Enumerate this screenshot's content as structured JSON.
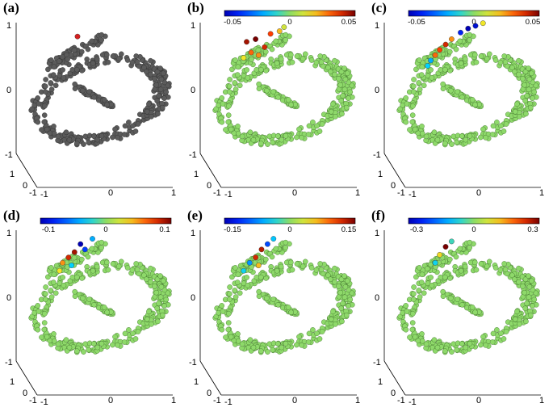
{
  "chart_data": [
    {
      "panel": "(a)",
      "type": "scatter",
      "label": "(a)",
      "colorbar": null,
      "highlight": [
        [
          0.4,
          0.08,
          1.0
        ]
      ],
      "axes": {
        "y_ticks": [
          "1",
          "0",
          "-1"
        ],
        "z_ticks": [
          "1",
          "0",
          "-1"
        ],
        "x_ticks": [
          "-1",
          "0",
          "1"
        ]
      }
    },
    {
      "panel": "(b)",
      "type": "scatter",
      "label": "(b)",
      "colorbar": {
        "min": -0.05,
        "max": 0.05,
        "tick_labels": [
          "-0.05",
          "0",
          "0.05"
        ]
      },
      "highlight": [
        [
          0.3,
          0.12,
          0.045
        ],
        [
          0.36,
          0.1,
          0.05
        ],
        [
          0.42,
          0.16,
          0.04
        ],
        [
          0.33,
          0.2,
          0.03
        ],
        [
          0.46,
          0.06,
          0.035
        ],
        [
          0.38,
          0.22,
          0.025
        ],
        [
          0.52,
          0.04,
          0.02
        ],
        [
          0.28,
          0.24,
          0.015
        ],
        [
          0.55,
          0.01,
          0.01
        ]
      ],
      "axes": {
        "y_ticks": [
          "1",
          "0",
          "-1"
        ],
        "z_ticks": [
          "1",
          "0",
          "-1"
        ],
        "x_ticks": [
          "-1",
          "0",
          "1"
        ]
      }
    },
    {
      "panel": "(c)",
      "type": "scatter",
      "label": "(c)",
      "colorbar": {
        "min": -0.05,
        "max": 0.05,
        "tick_labels": [
          "-0.05",
          "0",
          "0.05"
        ]
      },
      "highlight": [
        [
          0.55,
          0.02,
          -0.05
        ],
        [
          0.6,
          0.0,
          -0.045
        ],
        [
          0.5,
          0.05,
          -0.04
        ],
        [
          0.4,
          0.14,
          0.04
        ],
        [
          0.36,
          0.18,
          0.035
        ],
        [
          0.33,
          0.22,
          0.03
        ],
        [
          0.44,
          0.1,
          0.025
        ],
        [
          0.3,
          0.26,
          -0.02
        ],
        [
          0.28,
          0.3,
          -0.015
        ],
        [
          0.65,
          -0.02,
          0.015
        ]
      ],
      "axes": {
        "y_ticks": [
          "1",
          "0",
          "-1"
        ],
        "z_ticks": [
          "1",
          "0",
          "-1"
        ],
        "x_ticks": [
          "-1",
          "0",
          "1"
        ]
      }
    },
    {
      "panel": "(d)",
      "type": "scatter",
      "label": "(d)",
      "colorbar": {
        "min": -0.1,
        "max": 0.1,
        "tick_labels": [
          "-0.1",
          "0",
          "0.1"
        ]
      },
      "highlight": [
        [
          0.42,
          0.08,
          -0.1
        ],
        [
          0.38,
          0.14,
          0.09
        ],
        [
          0.34,
          0.18,
          0.08
        ],
        [
          0.45,
          0.12,
          -0.07
        ],
        [
          0.3,
          0.22,
          0.05
        ],
        [
          0.5,
          0.04,
          -0.04
        ],
        [
          0.36,
          0.24,
          -0.03
        ],
        [
          0.28,
          0.28,
          0.03
        ]
      ],
      "axes": {
        "y_ticks": [
          "1",
          "0",
          "-1"
        ],
        "z_ticks": [
          "1",
          "0",
          "-1"
        ],
        "x_ticks": [
          "-1",
          "0",
          "1"
        ]
      }
    },
    {
      "panel": "(e)",
      "type": "scatter",
      "label": "(e)",
      "colorbar": {
        "min": -0.15,
        "max": 0.15,
        "tick_labels": [
          "-0.15",
          "0",
          "0.15"
        ]
      },
      "highlight": [
        [
          0.4,
          0.12,
          0.13
        ],
        [
          0.36,
          0.18,
          0.12
        ],
        [
          0.44,
          0.08,
          -0.1
        ],
        [
          0.32,
          0.22,
          -0.07
        ],
        [
          0.48,
          0.04,
          -0.05
        ],
        [
          0.38,
          0.24,
          0.06
        ],
        [
          0.28,
          0.28,
          -0.04
        ]
      ],
      "axes": {
        "y_ticks": [
          "1",
          "0",
          "-1"
        ],
        "z_ticks": [
          "1",
          "0",
          "-1"
        ],
        "x_ticks": [
          "-1",
          "0",
          "1"
        ]
      }
    },
    {
      "panel": "(f)",
      "type": "scatter",
      "label": "(f)",
      "colorbar": {
        "min": -0.3,
        "max": 0.3,
        "tick_labels": [
          "-0.3",
          "0",
          "0.3"
        ]
      },
      "highlight": [
        [
          0.4,
          0.1,
          0.3
        ],
        [
          0.36,
          0.16,
          0.1
        ],
        [
          0.33,
          0.22,
          -0.08
        ],
        [
          0.44,
          0.06,
          -0.05
        ]
      ],
      "axes": {
        "y_ticks": [
          "1",
          "0",
          "-1"
        ],
        "z_ticks": [
          "1",
          "0",
          "-1"
        ],
        "x_ticks": [
          "-1",
          "0",
          "1"
        ]
      }
    }
  ],
  "colors": {
    "gray_points": "#5b5b5b",
    "neutral_points": "#8ed96a",
    "edge": "#3d6e2a"
  }
}
